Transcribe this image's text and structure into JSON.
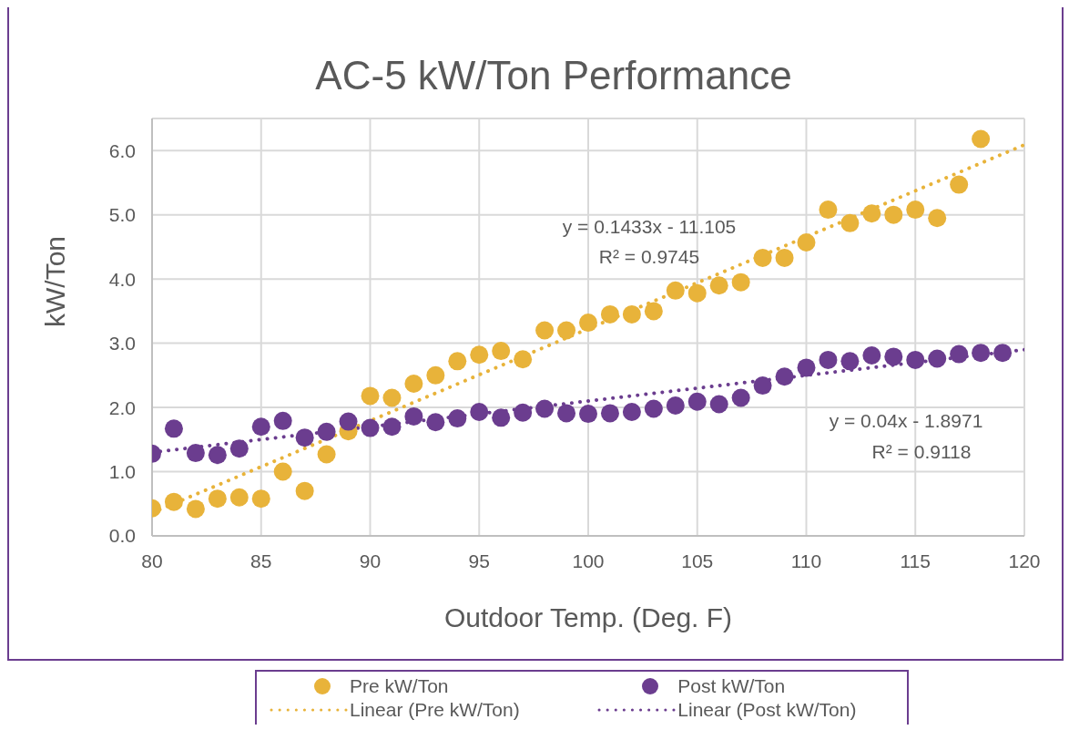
{
  "chart_data": {
    "type": "scatter",
    "title": "AC-5 kW/Ton Performance",
    "xlabel": "Outdoor Temp. (Deg. F)",
    "ylabel": "kW/Ton",
    "xlim": [
      80,
      120
    ],
    "xticks": [
      80,
      85,
      90,
      95,
      100,
      105,
      110,
      115,
      120
    ],
    "ylim": [
      0,
      6.5
    ],
    "yticks": [
      {
        "value": 0,
        "label": "0.0"
      },
      {
        "value": 1,
        "label": "1.0"
      },
      {
        "value": 2,
        "label": "2.0"
      },
      {
        "value": 3,
        "label": "3.0"
      },
      {
        "value": 4,
        "label": "4.0"
      },
      {
        "value": 5,
        "label": "5.0"
      },
      {
        "value": 6,
        "label": "6.0"
      }
    ],
    "grid": true,
    "legend": "bottom",
    "series": [
      {
        "name": "Pre kW/Ton",
        "marker": "circle",
        "color": "#e8b33a",
        "x": [
          80,
          81,
          82,
          83,
          84,
          85,
          86,
          87,
          88,
          89,
          90,
          91,
          92,
          93,
          94,
          95,
          96,
          97,
          98,
          99,
          100,
          101,
          102,
          103,
          104,
          105,
          106,
          107,
          108,
          109,
          110,
          111,
          112,
          113,
          114,
          115,
          116,
          117,
          118
        ],
        "values": [
          0.43,
          0.53,
          0.42,
          0.58,
          0.6,
          0.58,
          1.0,
          0.7,
          1.27,
          1.63,
          2.18,
          2.15,
          2.37,
          2.5,
          2.72,
          2.82,
          2.88,
          2.75,
          3.2,
          3.2,
          3.32,
          3.45,
          3.45,
          3.5,
          3.82,
          3.78,
          3.9,
          3.95,
          4.33,
          4.33,
          4.57,
          5.08,
          4.87,
          5.02,
          5.0,
          5.08,
          4.95,
          5.47,
          6.18
        ]
      },
      {
        "name": "Post kW/Ton",
        "marker": "circle",
        "color": "#6b3d8f",
        "x": [
          80,
          81,
          82,
          83,
          84,
          85,
          86,
          87,
          88,
          89,
          90,
          91,
          92,
          93,
          94,
          95,
          96,
          97,
          98,
          99,
          100,
          101,
          102,
          103,
          104,
          105,
          106,
          107,
          108,
          109,
          110,
          111,
          112,
          113,
          114,
          115,
          116,
          117,
          118,
          119
        ],
        "values": [
          1.28,
          1.67,
          1.29,
          1.26,
          1.36,
          1.7,
          1.79,
          1.53,
          1.62,
          1.78,
          1.68,
          1.7,
          1.86,
          1.77,
          1.83,
          1.93,
          1.84,
          1.92,
          1.98,
          1.91,
          1.9,
          1.91,
          1.93,
          1.98,
          2.03,
          2.09,
          2.05,
          2.15,
          2.34,
          2.48,
          2.62,
          2.74,
          2.72,
          2.81,
          2.79,
          2.74,
          2.76,
          2.83,
          2.85,
          2.85
        ]
      },
      {
        "name": "Linear (Pre kW/Ton)",
        "type": "line",
        "line_style": "dotted",
        "color": "#e8b33a",
        "x": [
          80,
          120
        ],
        "values": [
          0.36,
          6.09
        ]
      },
      {
        "name": "Linear (Post kW/Ton)",
        "type": "line",
        "line_style": "dotted",
        "color": "#6b3d8f",
        "x": [
          80,
          120
        ],
        "values": [
          1.3,
          2.9
        ]
      }
    ],
    "annotations": [
      "y = 0.1433x - 11.105",
      "R² = 0.9745",
      "y = 0.04x - 1.8971",
      "R² = 0.9118"
    ]
  }
}
